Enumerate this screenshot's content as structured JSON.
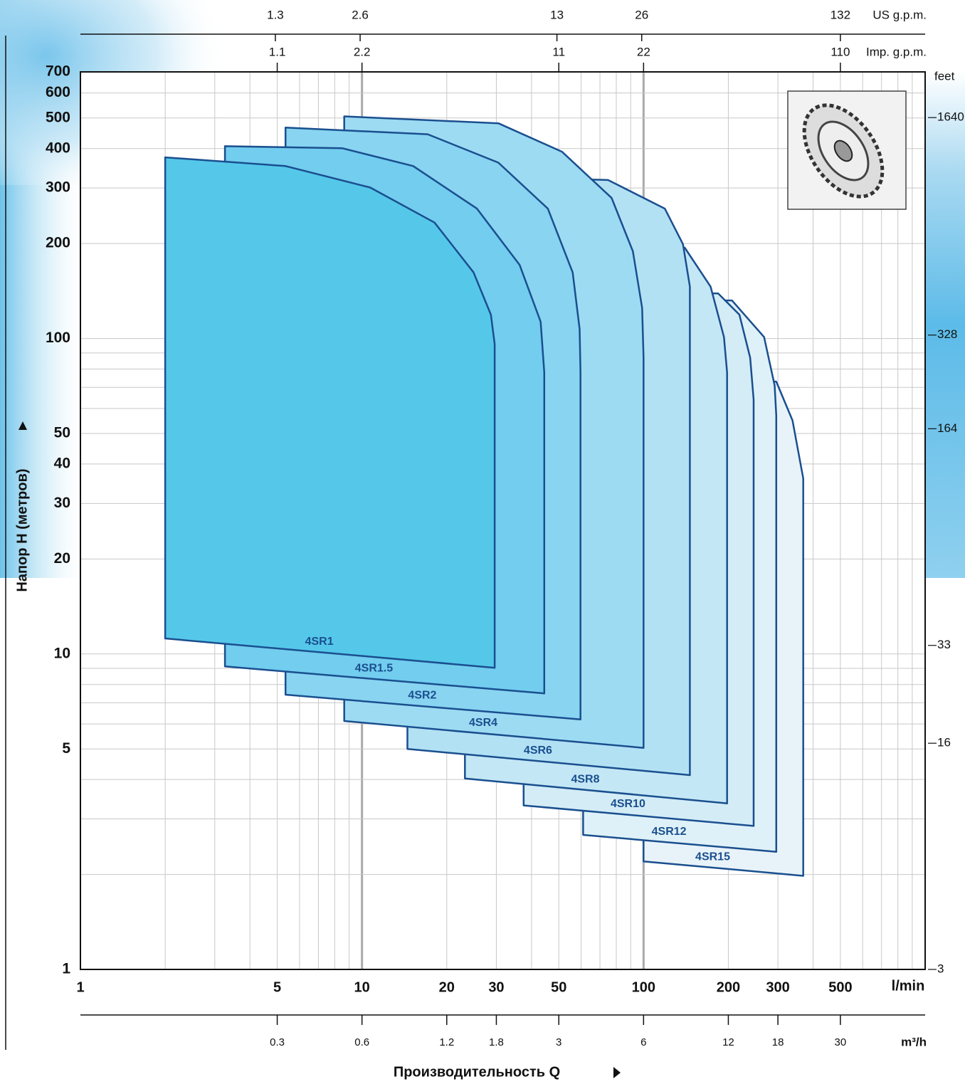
{
  "chart_data": {
    "type": "area",
    "xlabel": "Производительность  Q",
    "ylabel": "Напор H  (метров)",
    "x_unit": "l/min",
    "log_x": true,
    "log_y": true,
    "xlim": [
      1,
      1000
    ],
    "ylim": [
      1,
      700
    ],
    "xticks": [
      1,
      5,
      10,
      20,
      30,
      50,
      100,
      200,
      300,
      500
    ],
    "yticks": [
      1,
      5,
      10,
      20,
      30,
      40,
      50,
      100,
      200,
      300,
      400,
      500,
      600,
      700
    ],
    "xgrid": [
      2,
      3,
      4,
      5,
      6,
      7,
      8,
      9,
      10,
      20,
      30,
      40,
      50,
      60,
      70,
      80,
      90,
      100,
      200,
      300,
      400,
      500,
      600,
      700,
      800,
      900
    ],
    "ygrid": [
      2,
      3,
      4,
      5,
      6,
      7,
      8,
      9,
      10,
      20,
      30,
      40,
      50,
      60,
      70,
      80,
      90,
      100,
      200,
      300,
      400,
      500,
      600
    ],
    "x_axes": [
      {
        "label": "US g.p.m.",
        "lim": [
          0.264,
          264
        ],
        "ticks": [
          1.3,
          2.6,
          13,
          26,
          132
        ]
      },
      {
        "label": "Imp. g.p.m.",
        "lim": [
          0.22,
          220
        ],
        "ticks": [
          1.1,
          2.2,
          11,
          22,
          110
        ]
      },
      {
        "label": "m³/h",
        "lim": [
          0.06,
          60
        ],
        "ticks": [
          0.3,
          0.6,
          1.2,
          1.8,
          3,
          6,
          12,
          18,
          30
        ]
      }
    ],
    "y2label": "feet",
    "y2lim": [
      3,
      2300
    ],
    "y2ticks": [
      3,
      16,
      33,
      164,
      328,
      1640
    ],
    "line_color": "#1a4f8f",
    "series": [
      {
        "name": "4SR1",
        "color": "#55c8ea",
        "x": [
          2,
          2,
          5.35,
          10.7,
          18.1,
          24.9,
          28.7,
          29.6,
          29.6
        ],
        "values": [
          11.2,
          375,
          352,
          301,
          233,
          162,
          119,
          96,
          9.04
        ]
      },
      {
        "name": "4SR1.5",
        "color": "#72cdee",
        "x": [
          3.26,
          3.26,
          8.5,
          15.2,
          25.6,
          36.3,
          43.1,
          44.4,
          44.4
        ],
        "values": [
          9.13,
          407,
          401,
          352,
          258,
          171,
          113,
          78,
          7.5
        ]
      },
      {
        "name": "4SR2",
        "color": "#88d4f1",
        "x": [
          5.35,
          5.35,
          17.1,
          30.5,
          45.7,
          56,
          59.3,
          59.7,
          59.7
        ],
        "values": [
          7.43,
          466,
          444,
          361,
          258,
          162,
          107,
          78,
          6.2
        ]
      },
      {
        "name": "4SR4",
        "color": "#9ddbf3",
        "x": [
          8.65,
          8.65,
          30.5,
          51.3,
          77,
          91.6,
          98.8,
          100,
          100
        ],
        "values": [
          6.13,
          506,
          481,
          391,
          279,
          189,
          125,
          87,
          5.04
        ]
      },
      {
        "name": "4SR6",
        "color": "#b3e1f4",
        "x": [
          14.5,
          14.5,
          74.8,
          119,
          138,
          146,
          146
        ],
        "values": [
          5.0,
          330,
          318,
          258,
          199,
          146,
          4.13
        ]
      },
      {
        "name": "4SR8",
        "color": "#c4e7f5",
        "x": [
          23.2,
          23.2,
          140,
          173,
          193,
          198,
          198
        ],
        "values": [
          4.03,
          200,
          194,
          146,
          101,
          78,
          3.36
        ]
      },
      {
        "name": "4SR10",
        "color": "#d3ecf6",
        "x": [
          37.5,
          37.5,
          184,
          219,
          239,
          246,
          246
        ],
        "values": [
          3.31,
          140,
          139,
          119,
          87,
          64,
          2.85
        ]
      },
      {
        "name": "4SR12",
        "color": "#dff1f8",
        "x": [
          61,
          61,
          206,
          268,
          292,
          296,
          296
        ],
        "values": [
          2.67,
          132,
          132,
          101,
          71,
          57,
          2.36
        ]
      },
      {
        "name": "4SR15",
        "color": "#e8f3f9",
        "x": [
          100,
          100,
          296,
          338,
          369,
          369
        ],
        "values": [
          2.2,
          74,
          73,
          55,
          36,
          1.98
        ]
      }
    ]
  }
}
